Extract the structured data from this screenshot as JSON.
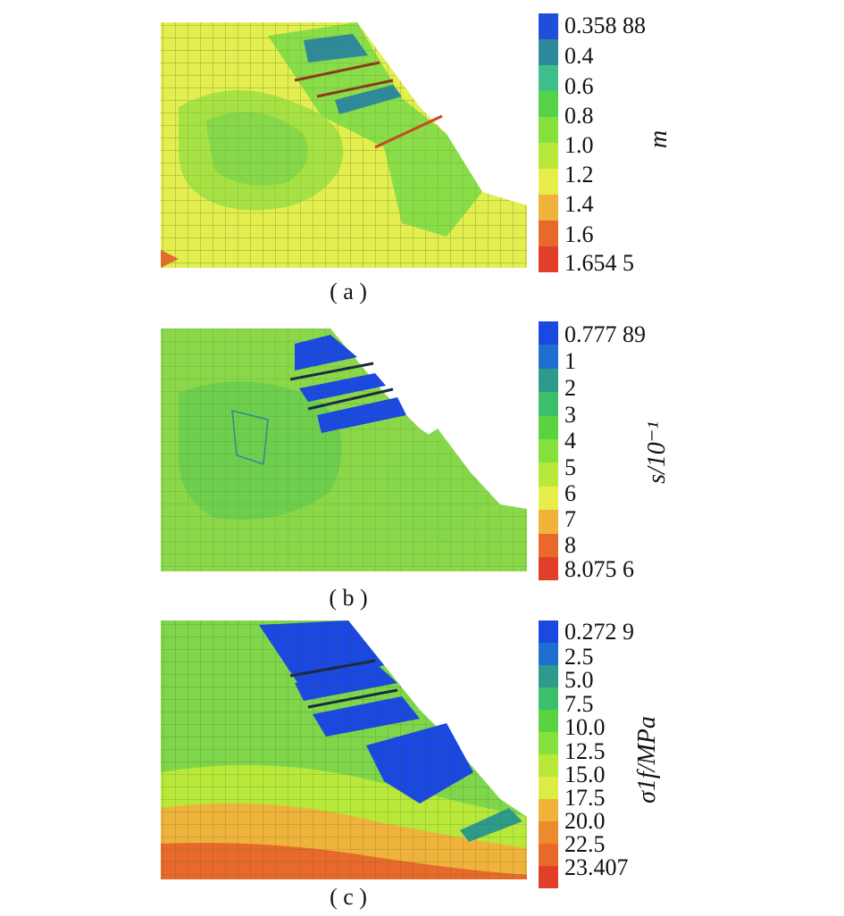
{
  "panels": [
    {
      "id": "a",
      "caption": "( a )",
      "colorbar_title": "m",
      "ticks": [
        "0.358 88",
        "0.4",
        "0.6",
        "0.8",
        "1.0",
        "1.2",
        "1.4",
        "1.6",
        "1.654 5"
      ],
      "colors": [
        "#1f4fd8",
        "#2e8a9a",
        "#3fbf8a",
        "#55d24a",
        "#86e03c",
        "#b7e83a",
        "#e7ee4a",
        "#efb23a",
        "#e86a2a",
        "#e0402a"
      ]
    },
    {
      "id": "b",
      "caption": "( b )",
      "colorbar_title": "s/10⁻¹",
      "ticks": [
        "0.777 89",
        "1",
        "2",
        "3",
        "4",
        "5",
        "6",
        "7",
        "8",
        "8.075 6"
      ],
      "colors": [
        "#1a48e0",
        "#1f6fd0",
        "#2e9a8a",
        "#3cbf6a",
        "#5ad340",
        "#86e03c",
        "#b7e83a",
        "#e7ee4a",
        "#efb23a",
        "#e86a2a",
        "#e0402a"
      ]
    },
    {
      "id": "c",
      "caption": "( c )",
      "colorbar_title": "σ1f/MPa",
      "ticks": [
        "0.272 9",
        "2.5",
        "5.0",
        "7.5",
        "10.0",
        "12.5",
        "15.0",
        "17.5",
        "20.0",
        "22.5",
        "23.407"
      ],
      "colors": [
        "#1a48e0",
        "#1f6fd0",
        "#2e9a8a",
        "#3cbf6a",
        "#5ad340",
        "#86e03c",
        "#b7e83a",
        "#dcec44",
        "#efb23a",
        "#ec8a2e",
        "#e86a2a",
        "#e0402a"
      ]
    }
  ]
}
